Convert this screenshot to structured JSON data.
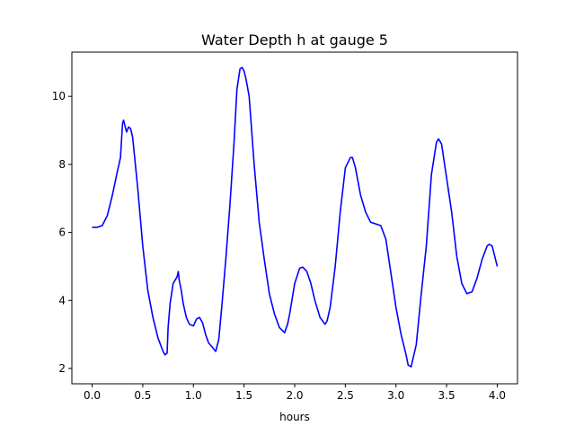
{
  "chart_data": {
    "type": "line",
    "title": "Water Depth h at gauge 5",
    "xlabel": "hours",
    "ylabel": "",
    "xlim": [
      -0.2,
      4.2
    ],
    "ylim": [
      1.55,
      11.3
    ],
    "xticks": [
      0.0,
      0.5,
      1.0,
      1.5,
      2.0,
      2.5,
      3.0,
      3.5,
      4.0
    ],
    "xtick_labels": [
      "0.0",
      "0.5",
      "1.0",
      "1.5",
      "2.0",
      "2.5",
      "3.0",
      "3.5",
      "4.0"
    ],
    "yticks": [
      2,
      4,
      6,
      8,
      10
    ],
    "ytick_labels": [
      "2",
      "4",
      "6",
      "8",
      "10"
    ],
    "grid": false,
    "series": [
      {
        "color": "#0000ff",
        "x": [
          0.0,
          0.05,
          0.1,
          0.15,
          0.2,
          0.25,
          0.28,
          0.3,
          0.31,
          0.34,
          0.36,
          0.38,
          0.4,
          0.42,
          0.45,
          0.5,
          0.55,
          0.6,
          0.65,
          0.7,
          0.72,
          0.74,
          0.75,
          0.77,
          0.8,
          0.82,
          0.84,
          0.85,
          0.86,
          0.88,
          0.9,
          0.93,
          0.96,
          1.0,
          1.03,
          1.06,
          1.09,
          1.12,
          1.15,
          1.18,
          1.22,
          1.25,
          1.28,
          1.32,
          1.36,
          1.4,
          1.43,
          1.46,
          1.48,
          1.5,
          1.52,
          1.55,
          1.6,
          1.65,
          1.7,
          1.75,
          1.8,
          1.85,
          1.9,
          1.93,
          1.95,
          2.0,
          2.05,
          2.08,
          2.12,
          2.16,
          2.2,
          2.25,
          2.3,
          2.32,
          2.35,
          2.4,
          2.45,
          2.5,
          2.55,
          2.57,
          2.6,
          2.65,
          2.7,
          2.75,
          2.8,
          2.85,
          2.9,
          2.95,
          3.0,
          3.05,
          3.1,
          3.12,
          3.15,
          3.2,
          3.25,
          3.3,
          3.35,
          3.4,
          3.42,
          3.45,
          3.5,
          3.55,
          3.6,
          3.65,
          3.7,
          3.75,
          3.8,
          3.85,
          3.9,
          3.92,
          3.95,
          4.0
        ],
        "y": [
          6.15,
          6.15,
          6.2,
          6.5,
          7.1,
          7.8,
          8.2,
          9.2,
          9.3,
          8.95,
          9.1,
          9.05,
          8.8,
          8.2,
          7.3,
          5.6,
          4.3,
          3.5,
          2.9,
          2.5,
          2.4,
          2.45,
          3.2,
          3.9,
          4.5,
          4.6,
          4.7,
          4.85,
          4.6,
          4.3,
          3.9,
          3.5,
          3.3,
          3.25,
          3.45,
          3.5,
          3.35,
          3.0,
          2.75,
          2.65,
          2.5,
          2.85,
          3.8,
          5.2,
          6.8,
          8.6,
          10.2,
          10.8,
          10.85,
          10.75,
          10.5,
          10.0,
          8.0,
          6.3,
          5.2,
          4.2,
          3.6,
          3.2,
          3.05,
          3.3,
          3.6,
          4.5,
          4.95,
          4.98,
          4.85,
          4.5,
          4.0,
          3.5,
          3.3,
          3.4,
          3.8,
          5.0,
          6.6,
          7.9,
          8.2,
          8.2,
          7.9,
          7.1,
          6.6,
          6.3,
          6.25,
          6.2,
          5.8,
          4.8,
          3.8,
          3.0,
          2.4,
          2.1,
          2.05,
          2.7,
          4.2,
          5.6,
          7.7,
          8.65,
          8.75,
          8.6,
          7.6,
          6.6,
          5.3,
          4.5,
          4.2,
          4.25,
          4.65,
          5.2,
          5.6,
          5.65,
          5.6,
          5.0
        ]
      }
    ]
  }
}
